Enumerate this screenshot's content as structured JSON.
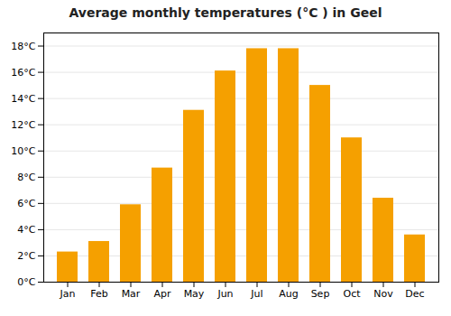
{
  "chart_data": {
    "type": "bar",
    "title": "Average monthly temperatures (°C ) in Geel",
    "categories": [
      "Jan",
      "Feb",
      "Mar",
      "Apr",
      "May",
      "Jun",
      "Jul",
      "Aug",
      "Sep",
      "Oct",
      "Nov",
      "Dec"
    ],
    "values": [
      2.3,
      3.1,
      5.9,
      8.7,
      13.1,
      16.1,
      17.8,
      17.8,
      15.0,
      11.0,
      6.4,
      3.6
    ],
    "color": "#F5A000",
    "ylim": [
      0,
      19
    ],
    "yticks": [
      {
        "value": 0,
        "label": "0°C"
      },
      {
        "value": 2,
        "label": "2°C"
      },
      {
        "value": 4,
        "label": "4°C"
      },
      {
        "value": 6,
        "label": "6°C"
      },
      {
        "value": 8,
        "label": "8°C"
      },
      {
        "value": 10,
        "label": "10°C"
      },
      {
        "value": 12,
        "label": "12°C"
      },
      {
        "value": 14,
        "label": "14°C"
      },
      {
        "value": 16,
        "label": "16°C"
      },
      {
        "value": 18,
        "label": "18°C"
      }
    ],
    "grid": true
  }
}
